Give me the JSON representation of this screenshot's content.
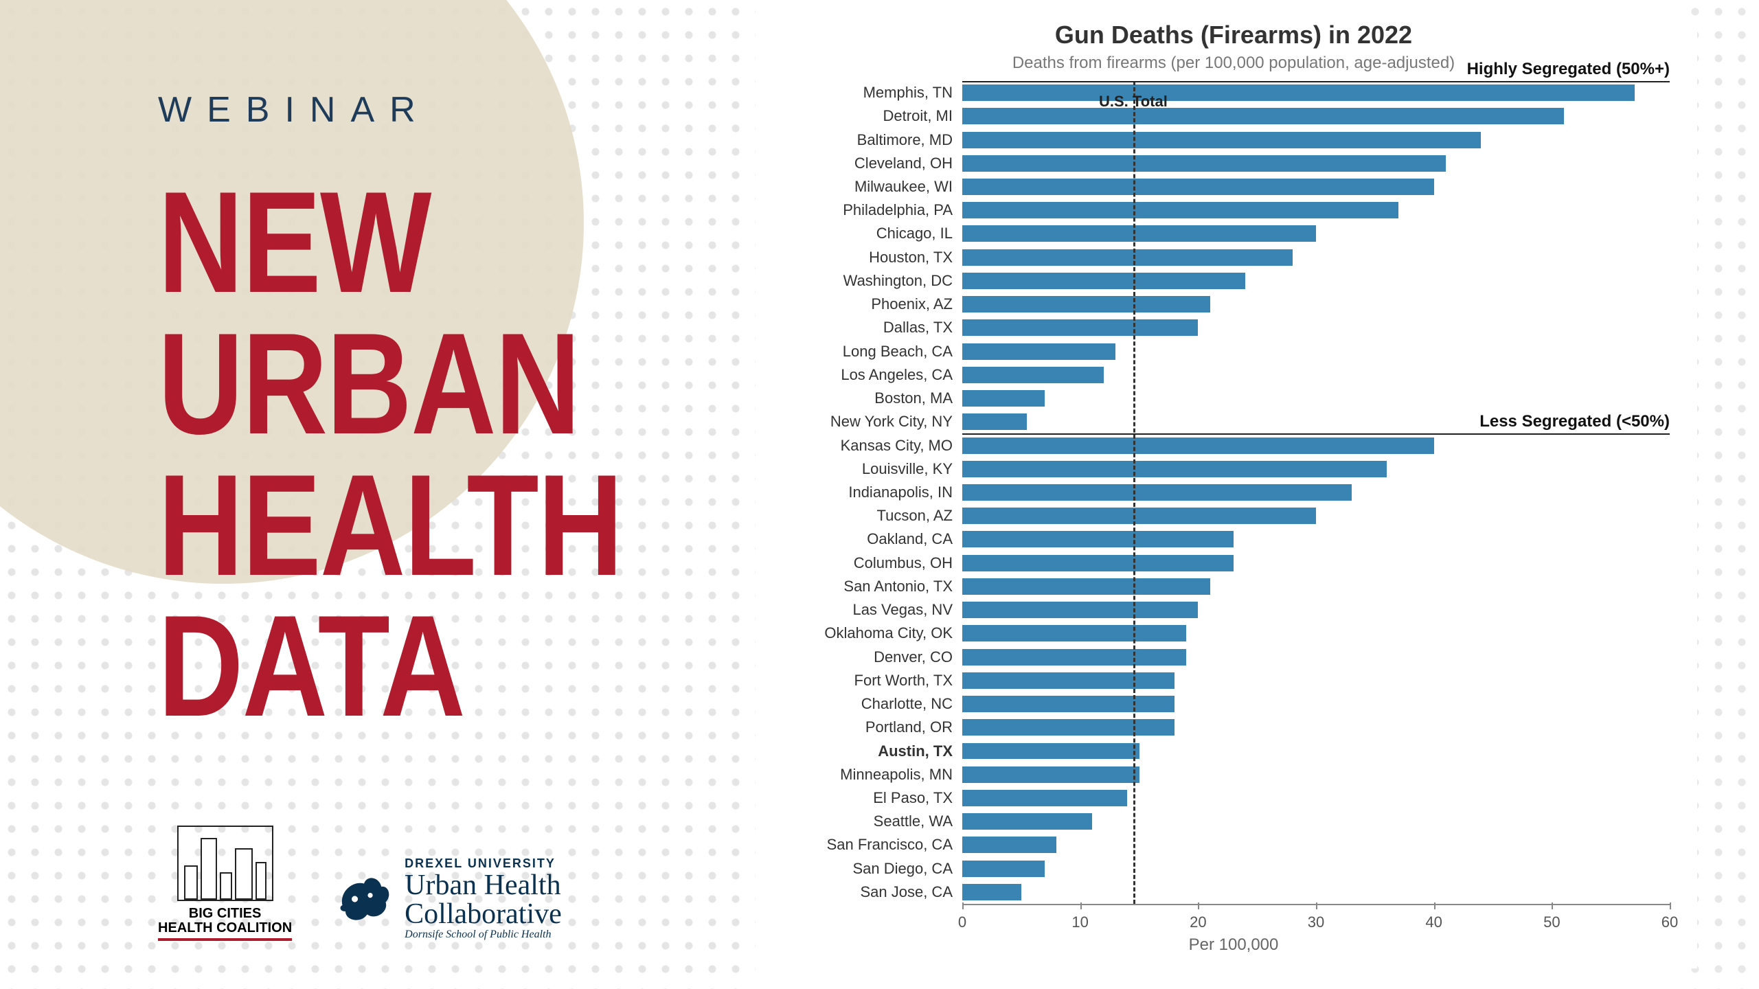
{
  "left": {
    "kicker": "WEBINAR",
    "headline_lines": [
      "NEW",
      "URBAN",
      "HEALTH",
      "DATA"
    ],
    "headline_color": "#b01c2e",
    "kicker_color": "#1f3b5a"
  },
  "logos": {
    "bchc_line1": "BIG CITIES",
    "bchc_line2": "HEALTH COALITION",
    "drexel_small": "DREXEL UNIVERSITY",
    "drexel_main1": "Urban Health",
    "drexel_main2": "Collaborative",
    "drexel_sub": "Dornsife School of Public Health"
  },
  "chart": {
    "type": "horizontal_bar",
    "title": "Gun Deaths (Firearms) in 2022",
    "subtitle": "Deaths from firearms (per 100,000 population, age-adjusted)",
    "x_axis_title": "Per 100,000",
    "xlim": [
      0,
      60
    ],
    "xtick_step": 10,
    "bar_color": "#3a84b3",
    "background_color": "#ffffff",
    "label_fontsize": 22,
    "title_fontsize": 36,
    "subtitle_fontsize": 24,
    "us_total": {
      "label": "U.S. Total",
      "value": 14.5
    },
    "sections": [
      {
        "label": "Highly Segregated (50%+)",
        "start_index": 0
      },
      {
        "label": "Less Segregated (<50%)",
        "start_index": 15
      }
    ],
    "highlighted_city": "Austin, TX",
    "cities": [
      {
        "name": "Memphis, TN",
        "value": 57
      },
      {
        "name": "Detroit, MI",
        "value": 51
      },
      {
        "name": "Baltimore, MD",
        "value": 44
      },
      {
        "name": "Cleveland, OH",
        "value": 41
      },
      {
        "name": "Milwaukee, WI",
        "value": 40
      },
      {
        "name": "Philadelphia, PA",
        "value": 37
      },
      {
        "name": "Chicago, IL",
        "value": 30
      },
      {
        "name": "Houston, TX",
        "value": 28
      },
      {
        "name": "Washington, DC",
        "value": 24
      },
      {
        "name": "Phoenix, AZ",
        "value": 21
      },
      {
        "name": "Dallas, TX",
        "value": 20
      },
      {
        "name": "Long Beach, CA",
        "value": 13
      },
      {
        "name": "Los Angeles, CA",
        "value": 12
      },
      {
        "name": "Boston, MA",
        "value": 7
      },
      {
        "name": "New York City, NY",
        "value": 5.5
      },
      {
        "name": "Kansas City, MO",
        "value": 40
      },
      {
        "name": "Louisville, KY",
        "value": 36
      },
      {
        "name": "Indianapolis, IN",
        "value": 33
      },
      {
        "name": "Tucson, AZ",
        "value": 30
      },
      {
        "name": "Oakland, CA",
        "value": 23
      },
      {
        "name": "Columbus, OH",
        "value": 23
      },
      {
        "name": "San Antonio, TX",
        "value": 21
      },
      {
        "name": "Las Vegas, NV",
        "value": 20
      },
      {
        "name": "Oklahoma City, OK",
        "value": 19
      },
      {
        "name": "Denver, CO",
        "value": 19
      },
      {
        "name": "Fort Worth, TX",
        "value": 18
      },
      {
        "name": "Charlotte, NC",
        "value": 18
      },
      {
        "name": "Portland, OR",
        "value": 18
      },
      {
        "name": "Austin, TX",
        "value": 15
      },
      {
        "name": "Minneapolis, MN",
        "value": 15
      },
      {
        "name": "El Paso, TX",
        "value": 14
      },
      {
        "name": "Seattle, WA",
        "value": 11
      },
      {
        "name": "San Francisco, CA",
        "value": 8
      },
      {
        "name": "San Diego, CA",
        "value": 7
      },
      {
        "name": "San Jose, CA",
        "value": 5
      }
    ]
  },
  "decor": {
    "beige_circle_color": "#e4dcc8",
    "dot_color": "#d0d0d0"
  }
}
